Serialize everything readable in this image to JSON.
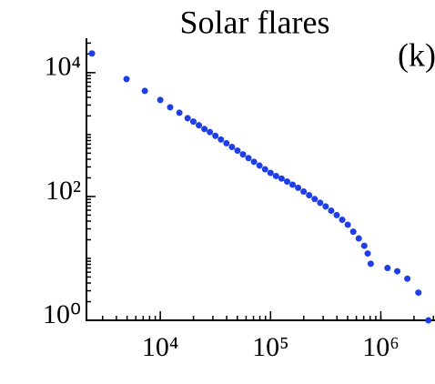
{
  "chart_data": {
    "type": "scatter",
    "title": "Solar flares",
    "annotation": "(k)",
    "log_x": true,
    "log_y": true,
    "color": "#1f3fe6",
    "xlim": [
      2140,
      3100000
    ],
    "ylim": [
      1,
      36000
    ],
    "xticks": [
      {
        "value": 10000,
        "label": "10⁴"
      },
      {
        "value": 100000,
        "label": "10⁵"
      },
      {
        "value": 1000000,
        "label": "10⁶"
      }
    ],
    "yticks": [
      {
        "value": 1,
        "label": "10⁰"
      },
      {
        "value": 100,
        "label": "10²"
      },
      {
        "value": 10000,
        "label": "10⁴"
      }
    ],
    "x": [
      2400,
      4940,
      7240,
      10000,
      12300,
      14900,
      17700,
      19950,
      22390,
      25120,
      28180,
      31620,
      35480,
      39810,
      44670,
      50120,
      56230,
      63100,
      70790,
      79430,
      89130,
      100000,
      112200,
      125900,
      141300,
      158500,
      177800,
      199500,
      223900,
      251200,
      281800,
      316200,
      354800,
      398100,
      446700,
      501200,
      562300,
      631000,
      707900,
      760000,
      810000,
      1150000,
      1410000,
      1740000,
      2190000,
      2700000
    ],
    "values": [
      20400,
      7890,
      5080,
      3620,
      2760,
      2250,
      1840,
      1622,
      1413,
      1230,
      1096,
      955,
      832,
      724,
      631,
      550,
      479,
      417,
      363,
      316,
      275,
      240,
      214,
      195,
      174,
      155,
      138,
      120,
      105,
      91,
      79,
      69,
      59,
      50,
      42,
      35,
      27,
      21,
      16,
      12,
      8.2,
      7,
      6.2,
      4.7,
      2.8,
      1
    ]
  }
}
